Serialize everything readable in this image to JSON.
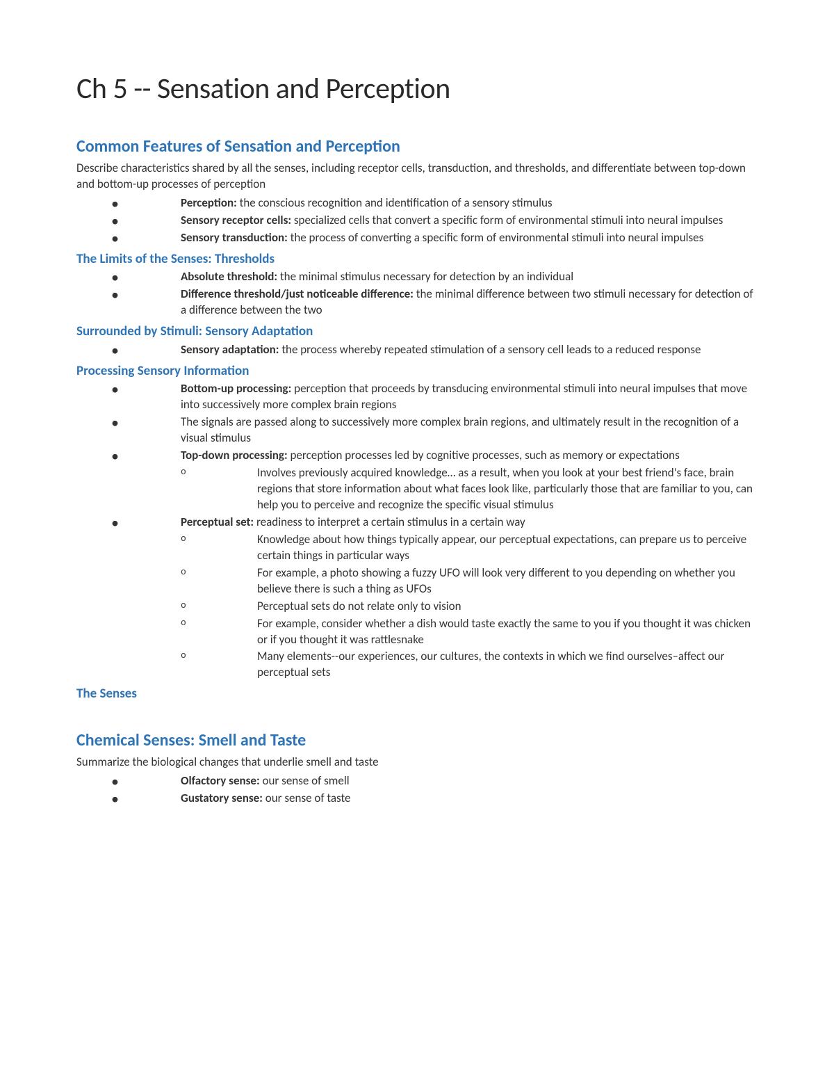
{
  "title": "Ch 5 -- Sensation and Perception",
  "colors": {
    "heading_blue": "#2e74b5",
    "text": "#333333",
    "background": "#ffffff"
  },
  "section1": {
    "heading": "Common Features of Sensation and Perception",
    "intro": "Describe characteristics shared by all the senses, including receptor cells, transduction, and thresholds, and differentiate between top-down and bottom-up processes of perception",
    "items": [
      {
        "term": "Perception:",
        "def": " the conscious recognition and identification of a sensory stimulus"
      },
      {
        "term": "Sensory receptor cells:",
        "def": " specialized cells that convert a specific form of environmental stimuli into neural impulses"
      },
      {
        "term": "Sensory transduction:",
        "def": " the process of converting a specific form of environmental stimuli into neural impulses"
      }
    ],
    "sub1": {
      "heading": "The Limits of the Senses: Thresholds",
      "items": [
        {
          "term": "Absolute threshold:",
          "def": " the minimal stimulus necessary for detection by an individual"
        },
        {
          "term": "Difference threshold/just noticeable difference:",
          "def": " the minimal difference between two stimuli necessary for detection of a difference between the two"
        }
      ]
    },
    "sub2": {
      "heading": "Surrounded by Stimuli: Sensory Adaptation",
      "items": [
        {
          "term": "Sensory adaptation:",
          "def": " the process whereby repeated stimulation of a sensory cell leads to a reduced response"
        }
      ]
    },
    "sub3": {
      "heading": "Processing Sensory Information",
      "items": [
        {
          "term": "Bottom-up processing:",
          "def": " perception that proceeds by transducing environmental stimuli into neural impulses that move into successively more complex brain regions"
        },
        {
          "term": "",
          "def": "The signals are passed along to successively more complex brain regions, and ultimately result in the recognition of a visual stimulus"
        },
        {
          "term": "Top-down processing:",
          "def": " perception processes led by cognitive processes, such as memory or expectations",
          "sub": [
            "Involves previously acquired knowledge… as a result, when you look at your best friend's face, brain regions that store information about what faces look like, particularly those that are familiar to you, can help you to perceive and recognize the specific visual stimulus"
          ]
        },
        {
          "term": "Perceptual set:",
          "def": " readiness to interpret a certain stimulus in a certain way",
          "sub": [
            "Knowledge about how things typically appear, our perceptual expectations, can prepare us to perceive certain things in particular ways",
            "For example, a photo showing a fuzzy UFO will look very different to you depending on whether you believe there is such a thing as UFOs",
            "Perceptual sets do not relate only to vision",
            "For example, consider whether a dish would taste exactly the same to you if you thought it was chicken or if you thought it was rattlesnake",
            "Many elements--our experiences, our cultures, the contexts in which we find ourselves–affect our perceptual sets"
          ]
        }
      ]
    },
    "sub4": {
      "heading": "The Senses"
    }
  },
  "section2": {
    "heading": "Chemical Senses: Smell and Taste",
    "intro": "Summarize the biological changes that underlie smell and taste",
    "items": [
      {
        "term": "Olfactory sense:",
        "def": " our sense of smell"
      },
      {
        "term": "Gustatory sense:",
        "def": " our sense of taste"
      }
    ]
  }
}
